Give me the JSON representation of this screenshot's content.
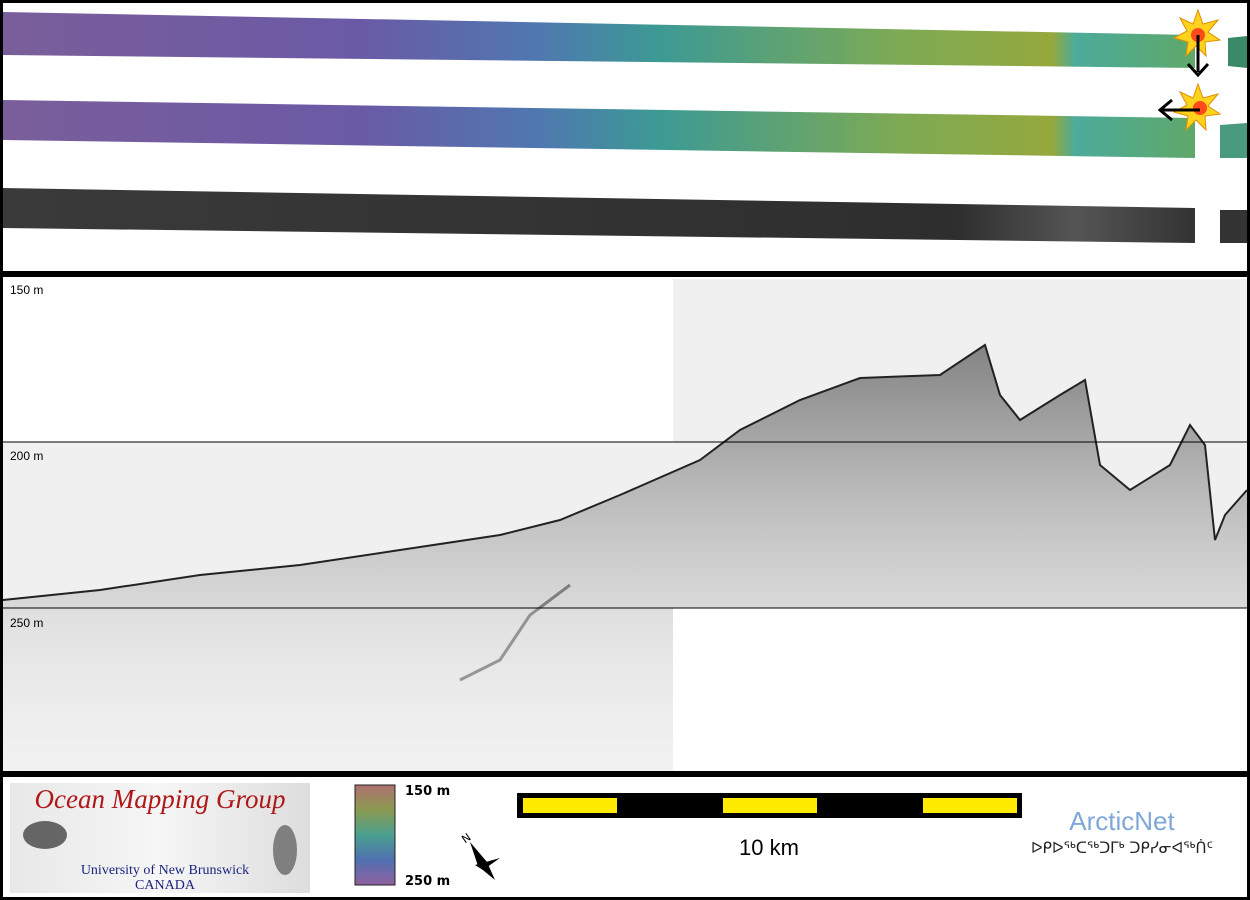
{
  "echogram": {
    "depth_labels": [
      "150 m",
      "200 m",
      "250 m"
    ]
  },
  "logo": {
    "title": "Ocean Mapping Group",
    "university": "University of New Brunswick",
    "country": "CANADA"
  },
  "color_bar": {
    "top_label": "150 m",
    "bottom_label": "250 m"
  },
  "scale_bar": {
    "label": "10 km"
  },
  "compass": {
    "label": "N"
  },
  "partner": {
    "name": "ArcticNet",
    "syllabics": "ᐅᑭᐅᖅᑕᖅᑐᒥᒃ ᑐᑭᓯᓂᐊᖅᑏᑦ"
  }
}
